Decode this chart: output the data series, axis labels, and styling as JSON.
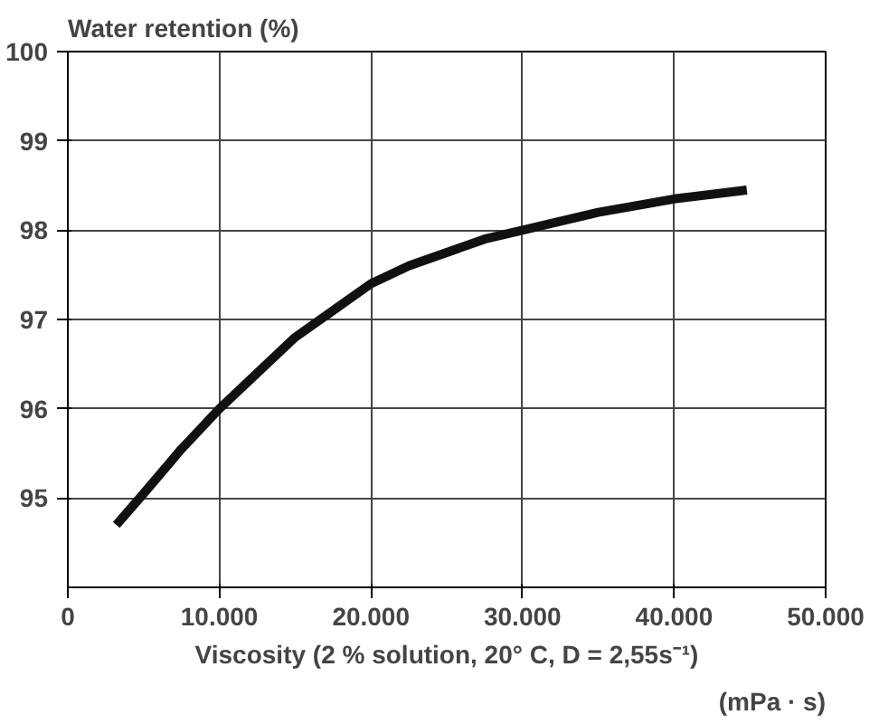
{
  "chart_data": {
    "type": "line",
    "ylabel": "Water retention (%)",
    "xlabel": "Viscosity (2 % solution, 20° C, D = 2,55s⁻¹)",
    "annotations": [
      "(mPa · s)"
    ],
    "x": [
      3200,
      5000,
      7500,
      10000,
      12500,
      15000,
      17500,
      20000,
      22500,
      25000,
      27500,
      30000,
      35000,
      40000,
      44800
    ],
    "series": [
      {
        "color": "#111111",
        "values": [
          94.7,
          95.05,
          95.55,
          96.0,
          96.4,
          96.8,
          97.1,
          97.4,
          97.6,
          97.75,
          97.9,
          98.0,
          98.2,
          98.35,
          98.45
        ]
      }
    ],
    "xlim": [
      0,
      50000
    ],
    "xticks": [
      0,
      {
        "value": 10000,
        "label": "10.000"
      },
      {
        "value": 20000,
        "label": "20.000"
      },
      {
        "value": 30000,
        "label": "30.000"
      },
      {
        "value": 40000,
        "label": "40.000"
      },
      {
        "value": 50000,
        "label": "50.000"
      }
    ],
    "ylim": [
      94,
      100
    ],
    "yticks": [
      95,
      96,
      97,
      98,
      99,
      100
    ],
    "grid": true,
    "marker": "none",
    "line_style": "solid"
  }
}
